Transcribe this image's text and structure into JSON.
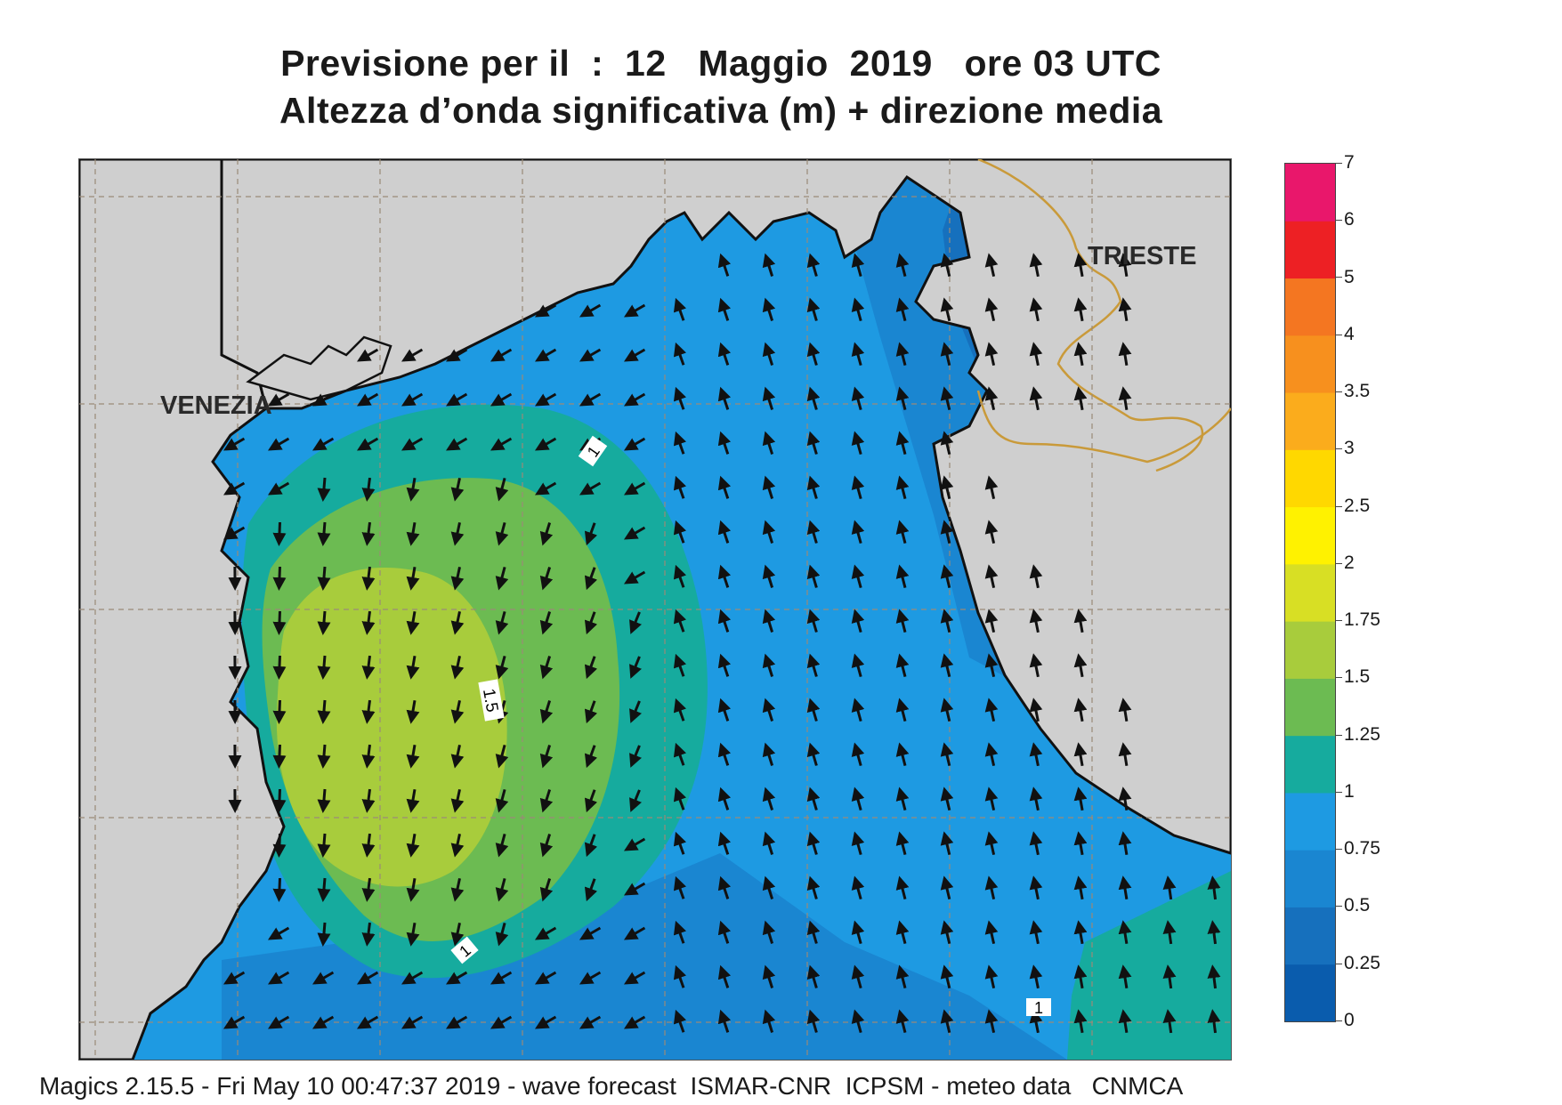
{
  "title": {
    "line1": "Previsione per il  :  12   Maggio  2019   ore 03 UTC",
    "line2": "Altezza d’onda significativa (m) + direzione media"
  },
  "map": {
    "cities": [
      "VENEZIA",
      "TRIESTE"
    ],
    "contour_labels": [
      "1",
      "1.5",
      "1",
      "1"
    ],
    "colors": {
      "land": "#cfcfcf",
      "coast": "#111111",
      "border": "#c99a3a",
      "grid": "#9a8a78"
    }
  },
  "colorbar": {
    "levels": [
      "7",
      "6",
      "5",
      "4",
      "3.5",
      "3",
      "2.5",
      "2",
      "1.75",
      "1.5",
      "1.25",
      "1",
      "0.75",
      "0.5",
      "0.25",
      "0"
    ],
    "colors": [
      "#0a5cad",
      "#1670bd",
      "#1a86d1",
      "#1e9ae2",
      "#16ab9e",
      "#6cbb52",
      "#a8cc3c",
      "#d8df24",
      "#fff200",
      "#ffd800",
      "#fbac1c",
      "#f7901e",
      "#f47621",
      "#ed2024",
      "#e9176b"
    ]
  },
  "footer": "Magics 2.15.5 - Fri May 10 00:47:37 2019 - wave forecast  ISMAR-CNR  ICPSM - meteo data   CNMCA"
}
